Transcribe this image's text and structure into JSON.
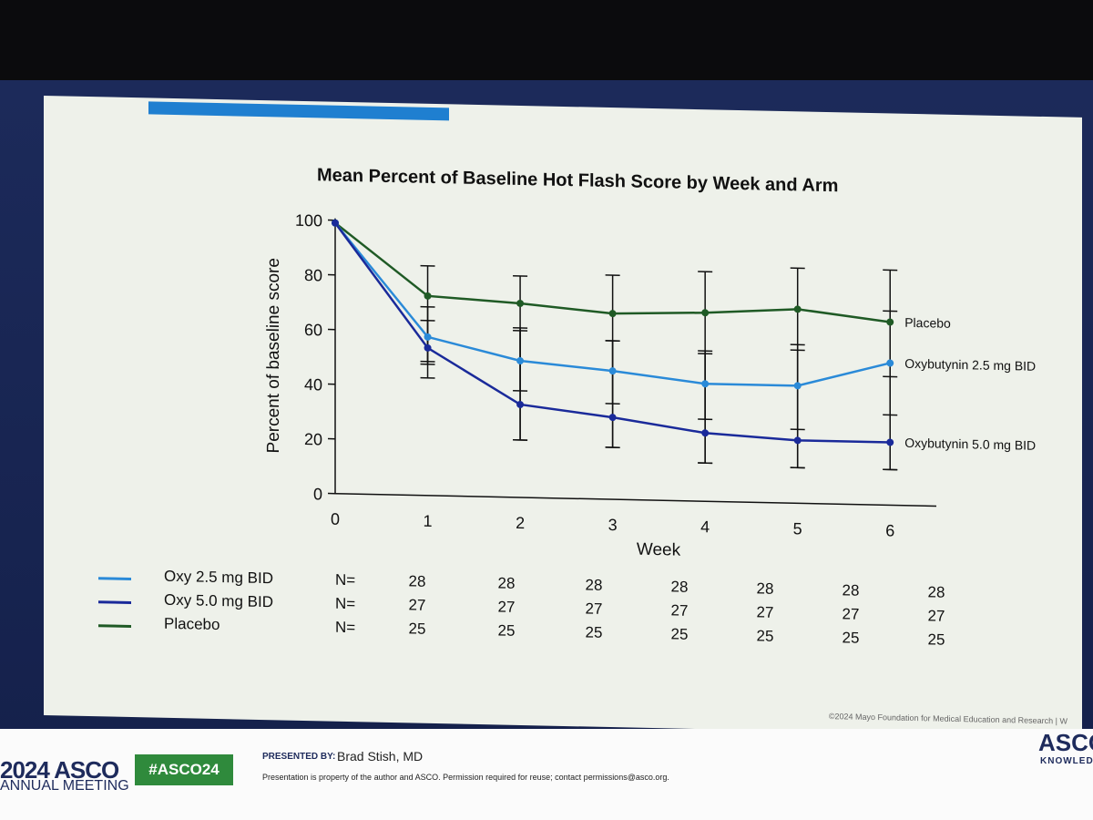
{
  "slide": {
    "title": "Mean Percent of Baseline Hot Flash Score by Week and Arm",
    "copyright": "©2024 Mayo Foundation for Medical Education and Research  |  W"
  },
  "chart_data": {
    "type": "line",
    "title": "Mean Percent of Baseline Hot Flash Score by Week and Arm",
    "xlabel": "Week",
    "ylabel": "Percent of baseline score",
    "x": [
      0,
      1,
      2,
      3,
      4,
      5,
      6
    ],
    "ylim": [
      0,
      100
    ],
    "yticks": [
      0,
      20,
      40,
      60,
      80,
      100
    ],
    "grid": false,
    "series": [
      {
        "name": "Placebo",
        "color": "#1f5a25",
        "values": [
          99,
          73,
          71,
          68,
          69,
          71,
          67
        ],
        "err_low": [
          null,
          49,
          21,
          19,
          14,
          13,
          13
        ],
        "err_high": [
          null,
          84,
          81,
          82,
          84,
          86,
          86
        ]
      },
      {
        "name": "Oxybutynin 2.5 mg BID",
        "color": "#2a8ad8",
        "values": [
          99,
          58,
          50,
          47,
          43,
          43,
          52
        ],
        "err_low": [
          null,
          48,
          39,
          35,
          30,
          27,
          33
        ],
        "err_high": [
          null,
          64,
          62,
          58,
          55,
          58,
          71
        ]
      },
      {
        "name": "Oxybutynin 5.0 mg BID",
        "color": "#1a2a9a",
        "values": [
          99,
          54,
          34,
          30,
          25,
          23,
          23
        ],
        "err_low": [
          null,
          43,
          21,
          19,
          14,
          13,
          13
        ],
        "err_high": [
          null,
          69,
          61,
          58,
          54,
          56,
          47
        ]
      }
    ]
  },
  "legend": {
    "n_label": "N=",
    "rows": [
      {
        "label": "Oxy 2.5 mg BID",
        "color": "#2a8ad8",
        "n": [
          "28",
          "28",
          "28",
          "28",
          "28",
          "28",
          "28"
        ]
      },
      {
        "label": "Oxy 5.0 mg BID",
        "color": "#1a2a9a",
        "n": [
          "27",
          "27",
          "27",
          "27",
          "27",
          "27",
          "27"
        ]
      },
      {
        "label": "Placebo",
        "color": "#1f5a25",
        "n": [
          "25",
          "25",
          "25",
          "25",
          "25",
          "25",
          "25"
        ]
      }
    ]
  },
  "footer": {
    "year_brand": "2024 ASCO",
    "meeting": "ANNUAL MEETING",
    "hashtag": "#ASCO24",
    "presented_by_label": "PRESENTED BY:",
    "presenter": "Brad Stish, MD",
    "disclaimer": "Presentation is property of the author and ASCO. Permission required for reuse; contact permissions@asco.org.",
    "brand_right": "ASCO",
    "brand_right_sub": "KNOWLEDGE"
  }
}
